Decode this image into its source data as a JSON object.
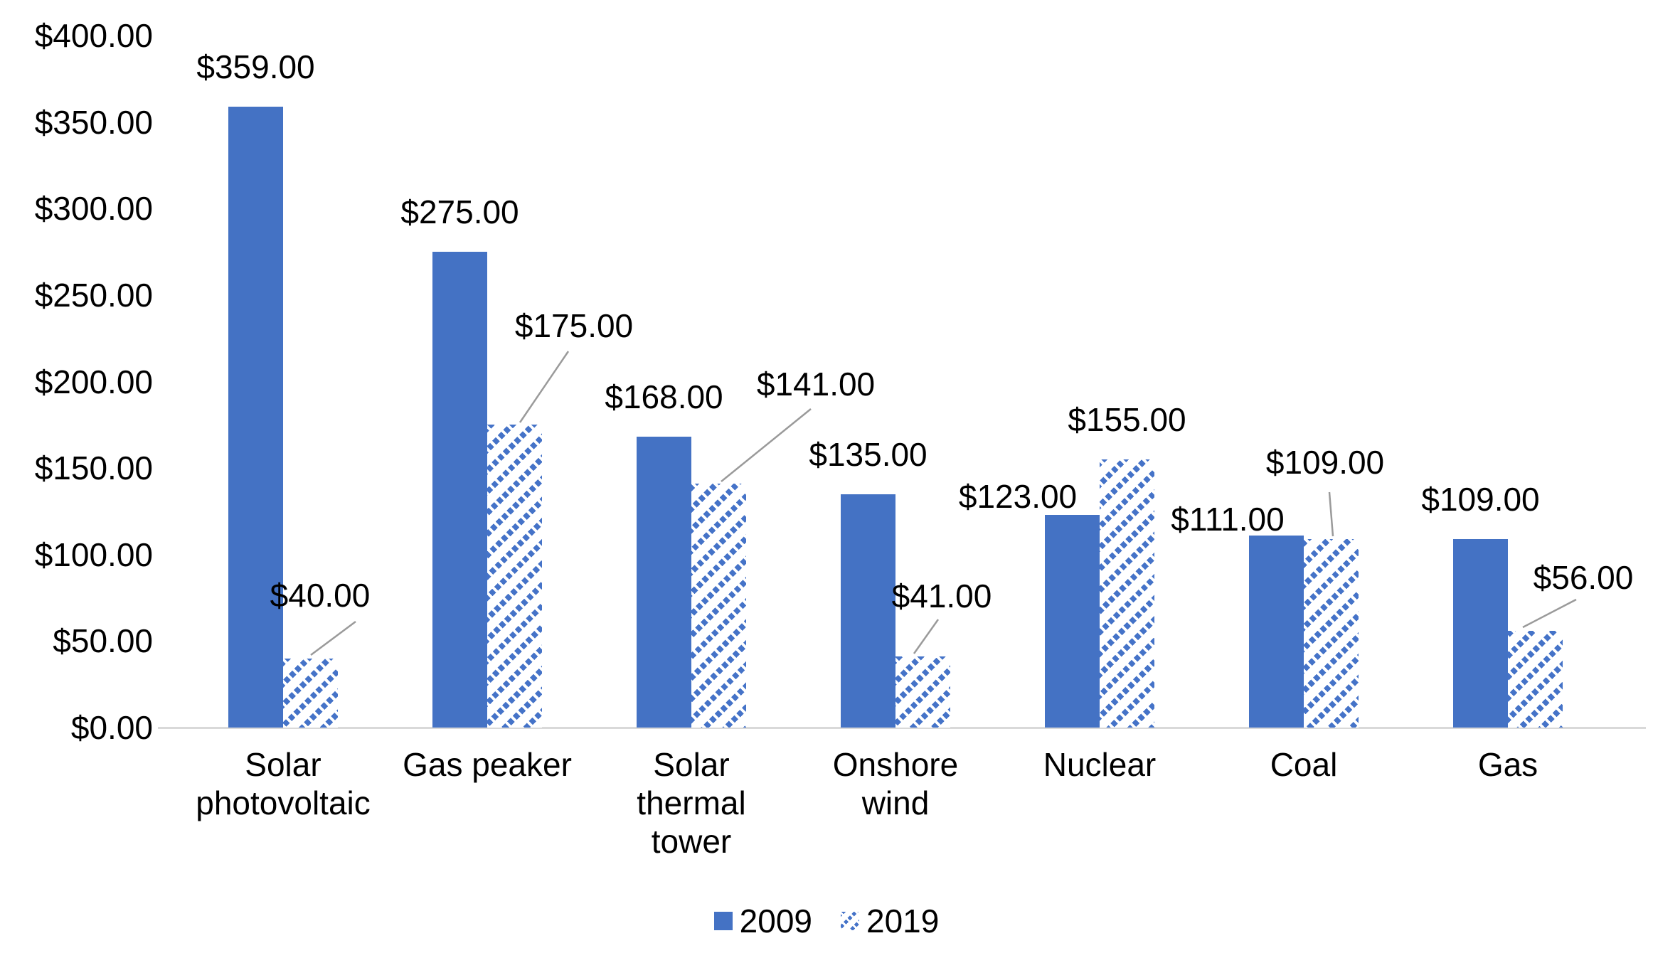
{
  "chart_data": {
    "type": "bar",
    "title": "",
    "categories": [
      "Solar\nphotovoltaic",
      "Gas peaker",
      "Solar\nthermal\ntower",
      "Onshore\nwind",
      "Nuclear",
      "Coal",
      "Gas"
    ],
    "series": [
      {
        "name": "2009",
        "pattern": "solid",
        "values": [
          359,
          275,
          168,
          135,
          123,
          111,
          109
        ],
        "labels": [
          "$359.00",
          "$275.00",
          "$168.00",
          "$135.00",
          "$123.00",
          "$111.00",
          "$109.00"
        ]
      },
      {
        "name": "2019",
        "pattern": "hatched",
        "values": [
          40,
          175,
          141,
          41,
          155,
          109,
          56
        ],
        "labels": [
          "$40.00",
          "$175.00",
          "$141.00",
          "$41.00",
          "$155.00",
          "$109.00",
          "$56.00"
        ]
      }
    ],
    "y_axis": {
      "min": 0,
      "max": 400,
      "step": 50,
      "tick_labels": [
        "$0.00",
        "$50.00",
        "$100.00",
        "$150.00",
        "$200.00",
        "$250.00",
        "$300.00",
        "$350.00",
        "$400.00"
      ]
    },
    "legend": {
      "position": "bottom",
      "items": [
        "2009",
        "2019"
      ]
    },
    "colors": {
      "bar_blue": "#4472C4",
      "axis_line": "#D9D9D9",
      "leader_line": "#9A9A9A",
      "text": "#000000"
    },
    "grid": "off"
  }
}
